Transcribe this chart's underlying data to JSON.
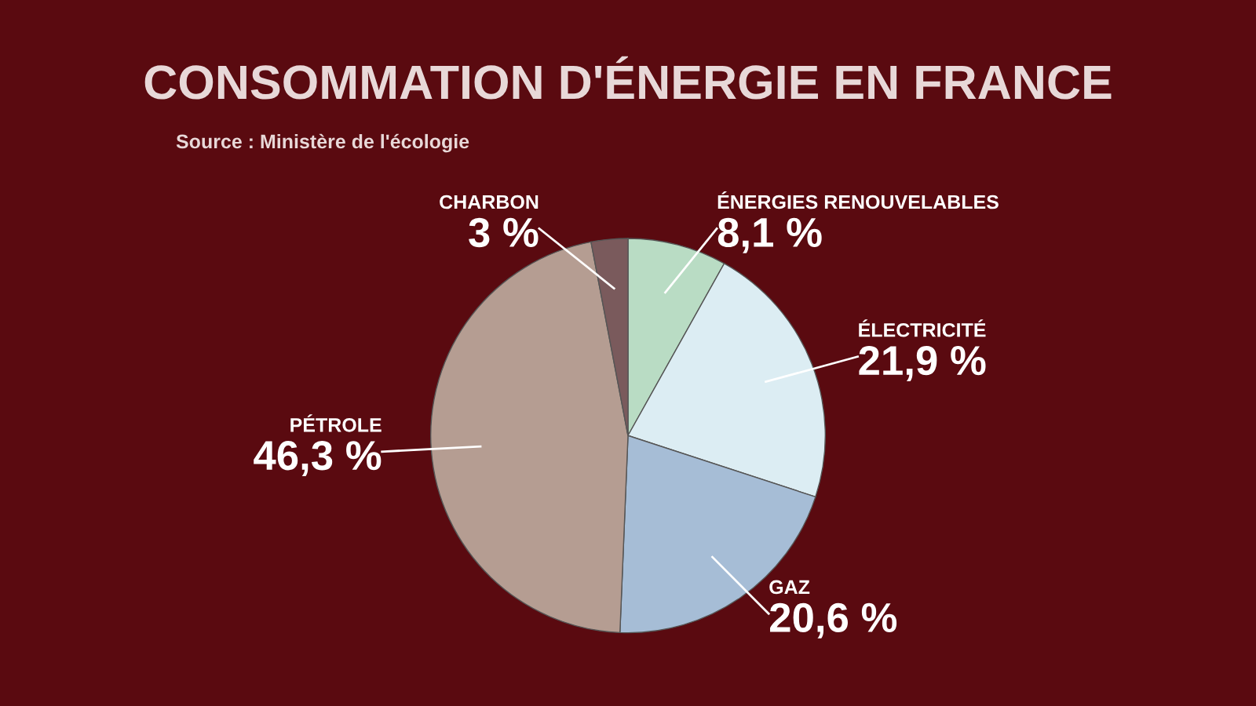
{
  "chart_data": {
    "type": "pie",
    "title": "CONSOMMATION D'ÉNERGIE EN FRANCE",
    "subtitle": "Source : Ministère de l'écologie",
    "categories": [
      "ÉNERGIES RENOUVELABLES",
      "ÉLECTRICITÉ",
      "GAZ",
      "PÉTROLE",
      "CHARBON"
    ],
    "values": [
      8.1,
      21.9,
      20.6,
      46.3,
      3
    ],
    "value_labels": [
      "8,1 %",
      "21,9 %",
      "20,6 %",
      "46,3 %",
      "3 %"
    ],
    "colors": [
      "#b9dcc4",
      "#dcedf3",
      "#a6bdd6",
      "#b59d92",
      "#7a5a5c"
    ]
  }
}
